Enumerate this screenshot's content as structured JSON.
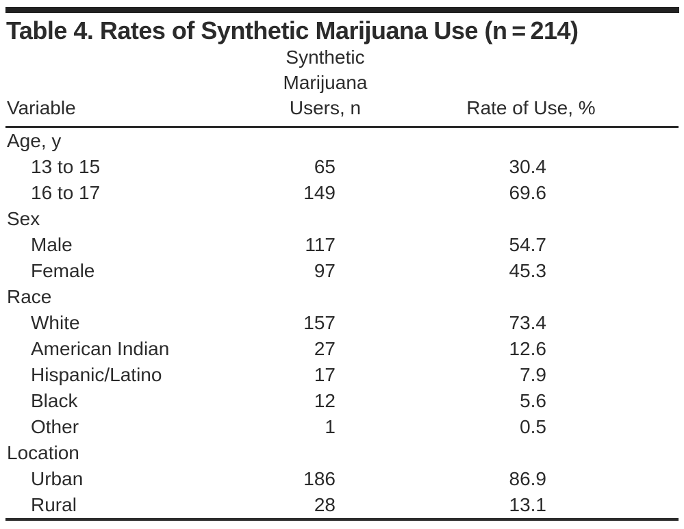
{
  "table": {
    "title": "Table 4. Rates of Synthetic Marijuana Use (n = 214)",
    "columns": {
      "variable": "Variable",
      "users": "Synthetic Marijuana Users, n",
      "rate": "Rate of Use, %"
    },
    "rows": [
      {
        "label": "Age, y",
        "n": "",
        "rate": ""
      },
      {
        "label": "13 to 15",
        "n": "65",
        "rate": "30.4"
      },
      {
        "label": "16 to 17",
        "n": "149",
        "rate": "69.6"
      },
      {
        "label": "Sex",
        "n": "",
        "rate": ""
      },
      {
        "label": "Male",
        "n": "117",
        "rate": "54.7"
      },
      {
        "label": "Female",
        "n": "97",
        "rate": "45.3"
      },
      {
        "label": "Race",
        "n": "",
        "rate": ""
      },
      {
        "label": "White",
        "n": "157",
        "rate": "73.4"
      },
      {
        "label": "American Indian",
        "n": "27",
        "rate": "12.6"
      },
      {
        "label": "Hispanic/Latino",
        "n": "17",
        "rate": "7.9"
      },
      {
        "label": "Black",
        "n": "12",
        "rate": "5.6"
      },
      {
        "label": "Other",
        "n": "1",
        "rate": "0.5"
      },
      {
        "label": "Location",
        "n": "",
        "rate": ""
      },
      {
        "label": "Urban",
        "n": "186",
        "rate": "86.9"
      },
      {
        "label": "Rural",
        "n": "28",
        "rate": "13.1"
      }
    ]
  },
  "colors": {
    "text": "#2b2b2b",
    "rule": "#2b2b2b",
    "top_bar": "#222222",
    "background": "#ffffff"
  }
}
